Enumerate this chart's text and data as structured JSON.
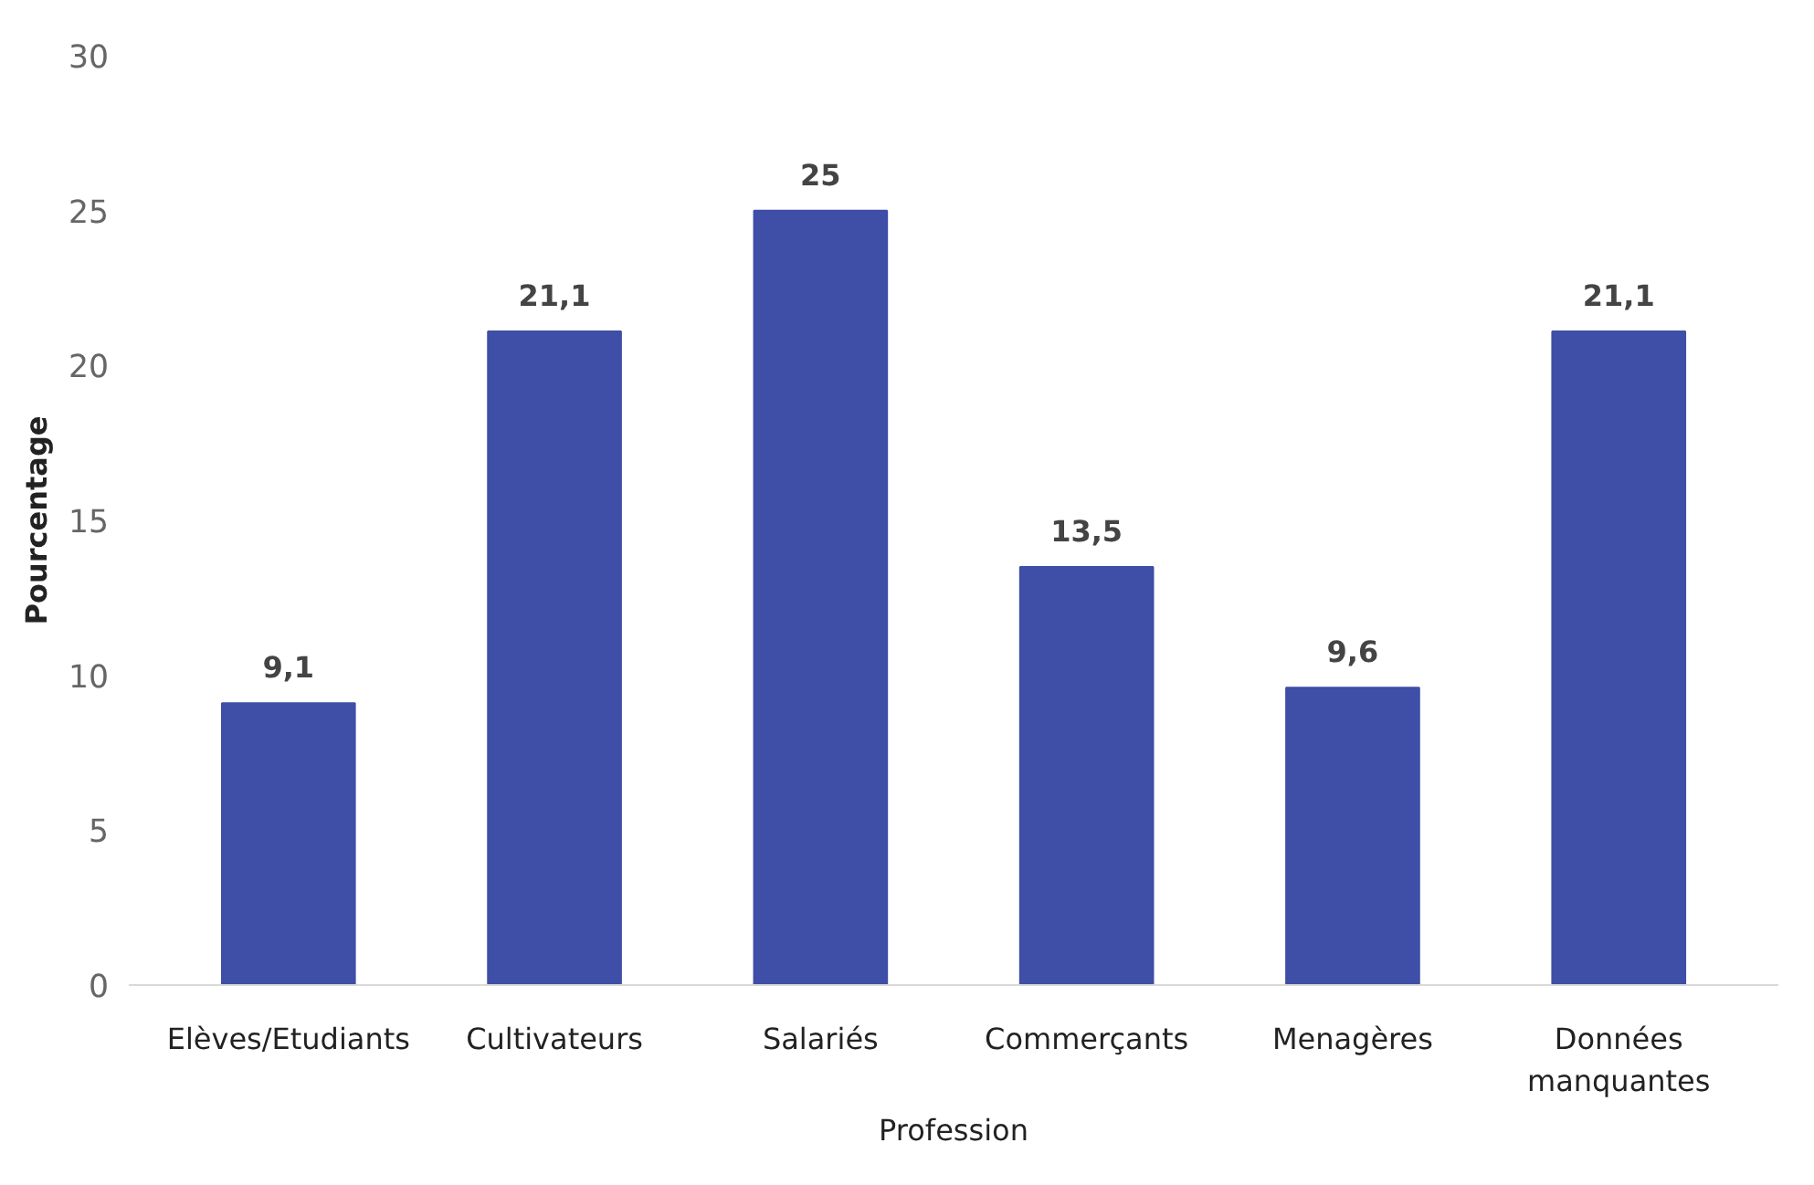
{
  "chart_data": {
    "type": "bar",
    "xlabel": "Profession",
    "ylabel": "Pourcentage",
    "categories": [
      "Elèves/Etudiants",
      "Cultivateurs",
      "Salariés",
      "Commerçants",
      "Menagères",
      "Données manquantes"
    ],
    "values": [
      9.1,
      21.1,
      25,
      13.5,
      9.6,
      21.1
    ],
    "value_labels": [
      "9,1",
      "21,1",
      "25",
      "13,5",
      "9,6",
      "21,1"
    ],
    "color": "#3f4ea6",
    "ylim": [
      0,
      30
    ],
    "yticks": [
      0,
      5,
      10,
      15,
      20,
      25,
      30
    ],
    "grid": false
  }
}
